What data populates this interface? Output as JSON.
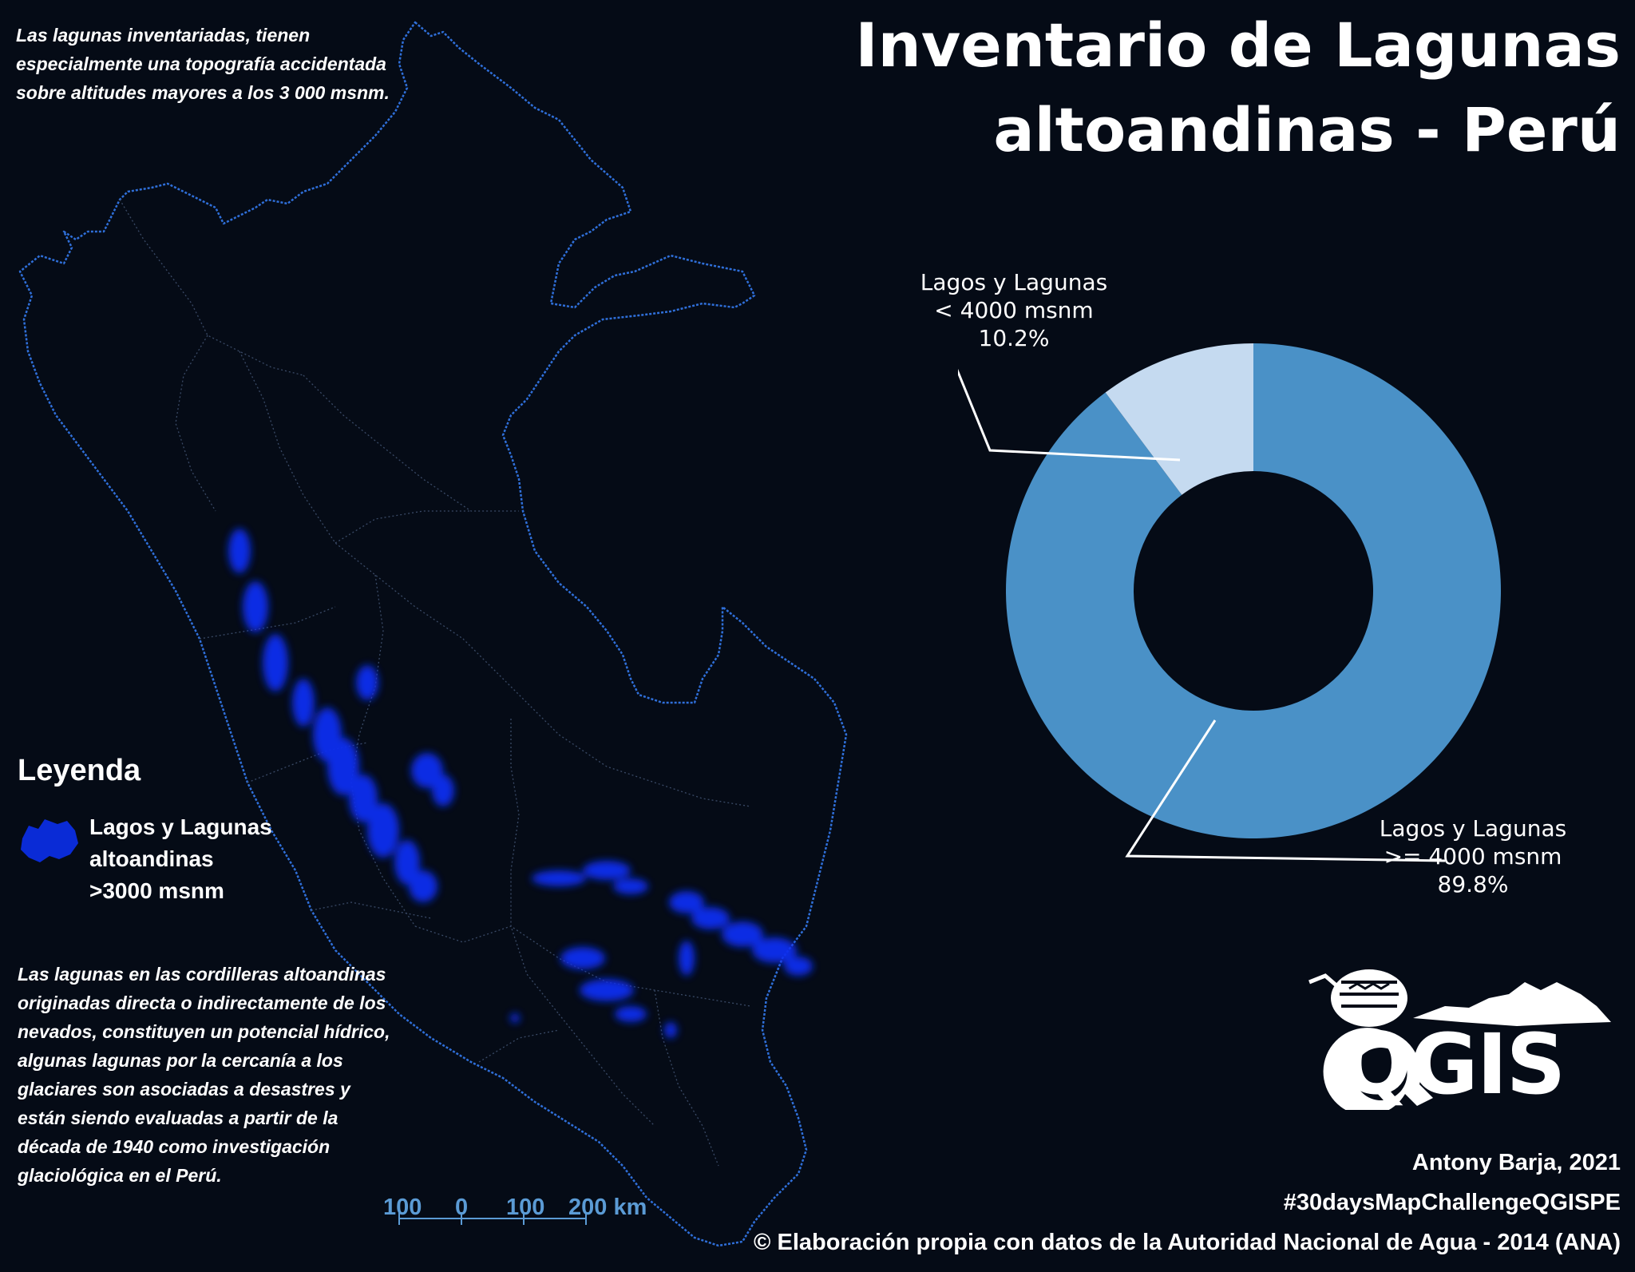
{
  "title": {
    "line1": "Inventario de Lagunas",
    "line2": "altoandinas - Perú"
  },
  "notes": {
    "top": "Las lagunas inventariadas, tienen especialmente una topografía accidentada sobre altitudes mayores a los 3 000 msnm.",
    "bottom": "Las lagunas en las cordilleras altoandinas originadas directa o indirectamente de los nevados, constituyen un potencial hídrico, algunas lagunas por la cercanía a los glaciares son asociadas a desastres y están siendo evaluadas a partir de la década de 1940 como investigación glaciológica en el Perú."
  },
  "legend": {
    "title": "Leyenda",
    "item_label_line1": "Lagos y Lagunas",
    "item_label_line2": "altoandinas",
    "item_label_line3": ">3000 msnm",
    "swatch_color": "#0a2bd6"
  },
  "scale_bar": {
    "labels": [
      "100",
      "0",
      "100",
      "200 km"
    ],
    "color": "#5b9bd5"
  },
  "chart_data": {
    "type": "pie",
    "donut": true,
    "slices": [
      {
        "label_line1": "Lagos y Lagunas",
        "label_line2": ">= 4000 msnm",
        "value_text": "89.8%",
        "value": 89.8,
        "color": "#4a91c7"
      },
      {
        "label_line1": "Lagos y Lagunas",
        "label_line2": "< 4000 msnm",
        "value_text": "10.2%",
        "value": 10.2,
        "color": "#c5daf0"
      }
    ]
  },
  "map": {
    "border_color": "#2f6fd9",
    "lake_color": "#0c2ff0",
    "country": "Perú"
  },
  "logo": {
    "text": "QGIS"
  },
  "credits": {
    "author": "Antony Barja, 2021",
    "hashtag": "#30daysMapChallengeQGISPE",
    "source": "© Elaboración propia con datos de la Autoridad Nacional de Agua - 2014 (ANA)"
  }
}
